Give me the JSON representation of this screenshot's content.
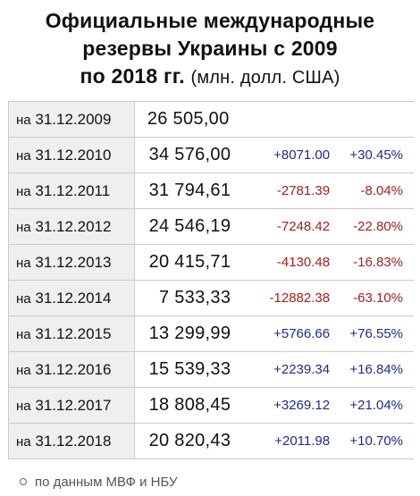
{
  "title": {
    "line1": "Официальные международные",
    "line2": "резервы Украины с 2009",
    "line3": "по 2018 гг.",
    "unit": "(млн. долл. США)"
  },
  "rows": [
    {
      "prefix": "на",
      "date": "31.12.2009",
      "value": "26 505,00",
      "diff": "",
      "pct": ""
    },
    {
      "prefix": "на",
      "date": "31.12.2010",
      "value": "34 576,00",
      "diff": "+8071.00",
      "pct": "+30.45%"
    },
    {
      "prefix": "на",
      "date": "31.12.2011",
      "value": "31 794,61",
      "diff": "-2781.39",
      "pct": "-8.04%"
    },
    {
      "prefix": "на",
      "date": "31.12.2012",
      "value": "24 546,19",
      "diff": "-7248.42",
      "pct": "-22.80%"
    },
    {
      "prefix": "на",
      "date": "31.12.2013",
      "value": "20 415,71",
      "diff": "-4130.48",
      "pct": "-16.83%"
    },
    {
      "prefix": "на",
      "date": "31.12.2014",
      "value": "7 533,33",
      "diff": "-12882.38",
      "pct": "-63.10%"
    },
    {
      "prefix": "на",
      "date": "31.12.2015",
      "value": "13 299,99",
      "diff": "+5766.66",
      "pct": "+76.55%"
    },
    {
      "prefix": "на",
      "date": "31.12.2016",
      "value": "15 539,33",
      "diff": "+2239.34",
      "pct": "+16.84%"
    },
    {
      "prefix": "на",
      "date": "31.12.2017",
      "value": "18 808,45",
      "diff": "+3269.12",
      "pct": "+21.04%"
    },
    {
      "prefix": "на",
      "date": "31.12.2018",
      "value": "20 820,43",
      "diff": "+2011.98",
      "pct": "+10.70%"
    }
  ],
  "source": "по данным МВФ и НБУ",
  "colors": {
    "positive": "#1e2b8f",
    "negative": "#a81d1d",
    "date_cell_bg": "#efefef"
  }
}
